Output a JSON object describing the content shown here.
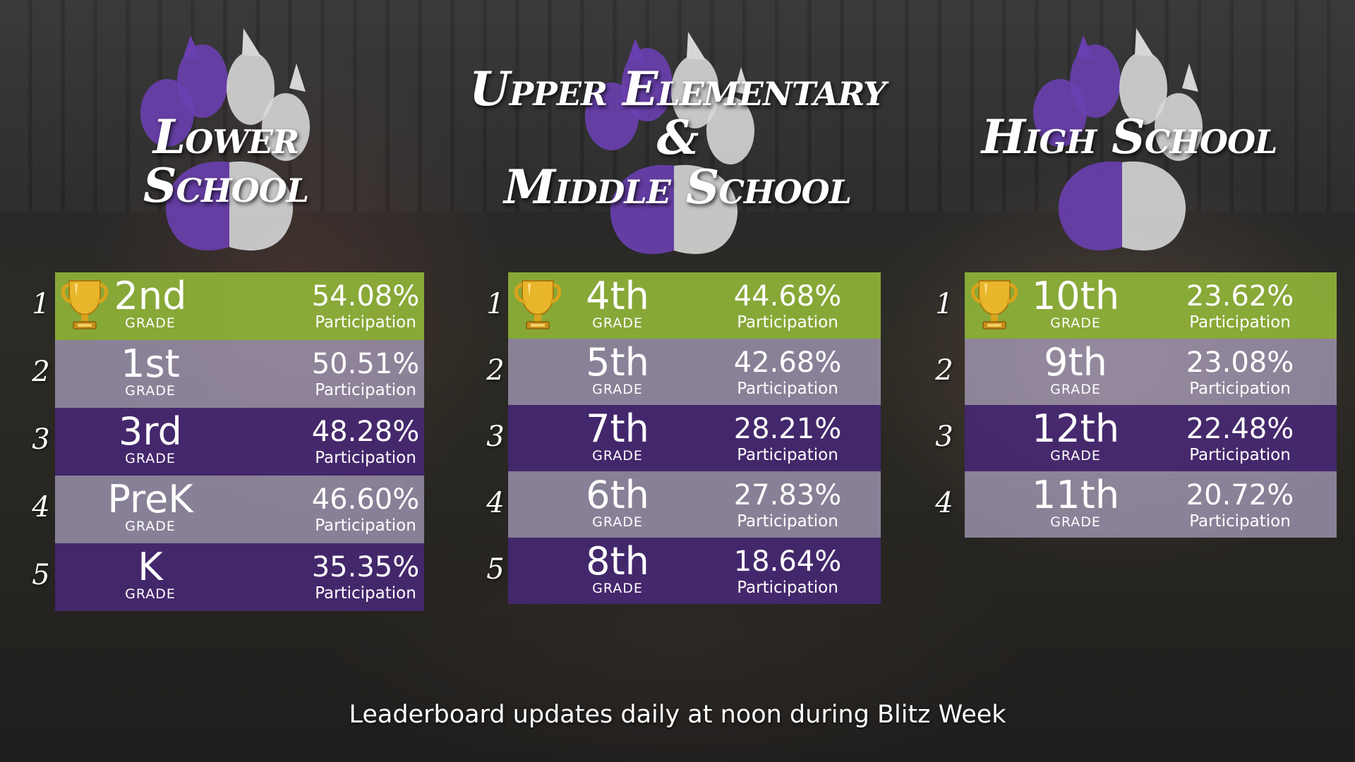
{
  "columns": [
    {
      "title_lines": [
        "Lower School"
      ],
      "rows": [
        {
          "rank": "1",
          "grade": "2nd",
          "grade_label": "GRADE",
          "percent": "54.08%",
          "participation": "Participation",
          "trophy": true
        },
        {
          "rank": "2",
          "grade": "1st",
          "grade_label": "GRADE",
          "percent": "50.51%",
          "participation": "Participation"
        },
        {
          "rank": "3",
          "grade": "3rd",
          "grade_label": "GRADE",
          "percent": "48.28%",
          "participation": "Participation"
        },
        {
          "rank": "4",
          "grade": "PreK",
          "grade_label": "GRADE",
          "percent": "46.60%",
          "participation": "Participation"
        },
        {
          "rank": "5",
          "grade": "K",
          "grade_label": "GRADE",
          "percent": "35.35%",
          "participation": "Participation"
        }
      ]
    },
    {
      "title_lines": [
        "Upper Elementary &",
        "Middle School"
      ],
      "rows": [
        {
          "rank": "1",
          "grade": "4th",
          "grade_label": "GRADE",
          "percent": "44.68%",
          "participation": "Participation",
          "trophy": true
        },
        {
          "rank": "2",
          "grade": "5th",
          "grade_label": "GRADE",
          "percent": "42.68%",
          "participation": "Participation"
        },
        {
          "rank": "3",
          "grade": "7th",
          "grade_label": "GRADE",
          "percent": "28.21%",
          "participation": "Participation"
        },
        {
          "rank": "4",
          "grade": "6th",
          "grade_label": "GRADE",
          "percent": "27.83%",
          "participation": "Participation"
        },
        {
          "rank": "5",
          "grade": "8th",
          "grade_label": "GRADE",
          "percent": "18.64%",
          "participation": "Participation"
        }
      ]
    },
    {
      "title_lines": [
        "High School"
      ],
      "rows": [
        {
          "rank": "1",
          "grade": "10th",
          "grade_label": "GRADE",
          "percent": "23.62%",
          "participation": "Participation",
          "trophy": true
        },
        {
          "rank": "2",
          "grade": "9th",
          "grade_label": "GRADE",
          "percent": "23.08%",
          "participation": "Participation"
        },
        {
          "rank": "3",
          "grade": "12th",
          "grade_label": "GRADE",
          "percent": "22.48%",
          "participation": "Participation"
        },
        {
          "rank": "4",
          "grade": "11th",
          "grade_label": "GRADE",
          "percent": "20.72%",
          "participation": "Participation"
        }
      ]
    }
  ],
  "footer": "Leaderboard updates daily at noon during Blitz Week",
  "colors": {
    "first_place": "#94ba3a",
    "row_light": "#c4b8de",
    "row_dark": "#482878",
    "paw_purple": "#6a3fb0",
    "paw_gray": "#d6d6d6"
  },
  "icons": {
    "trophy": "trophy-icon",
    "paw": "paw-print-icon"
  }
}
